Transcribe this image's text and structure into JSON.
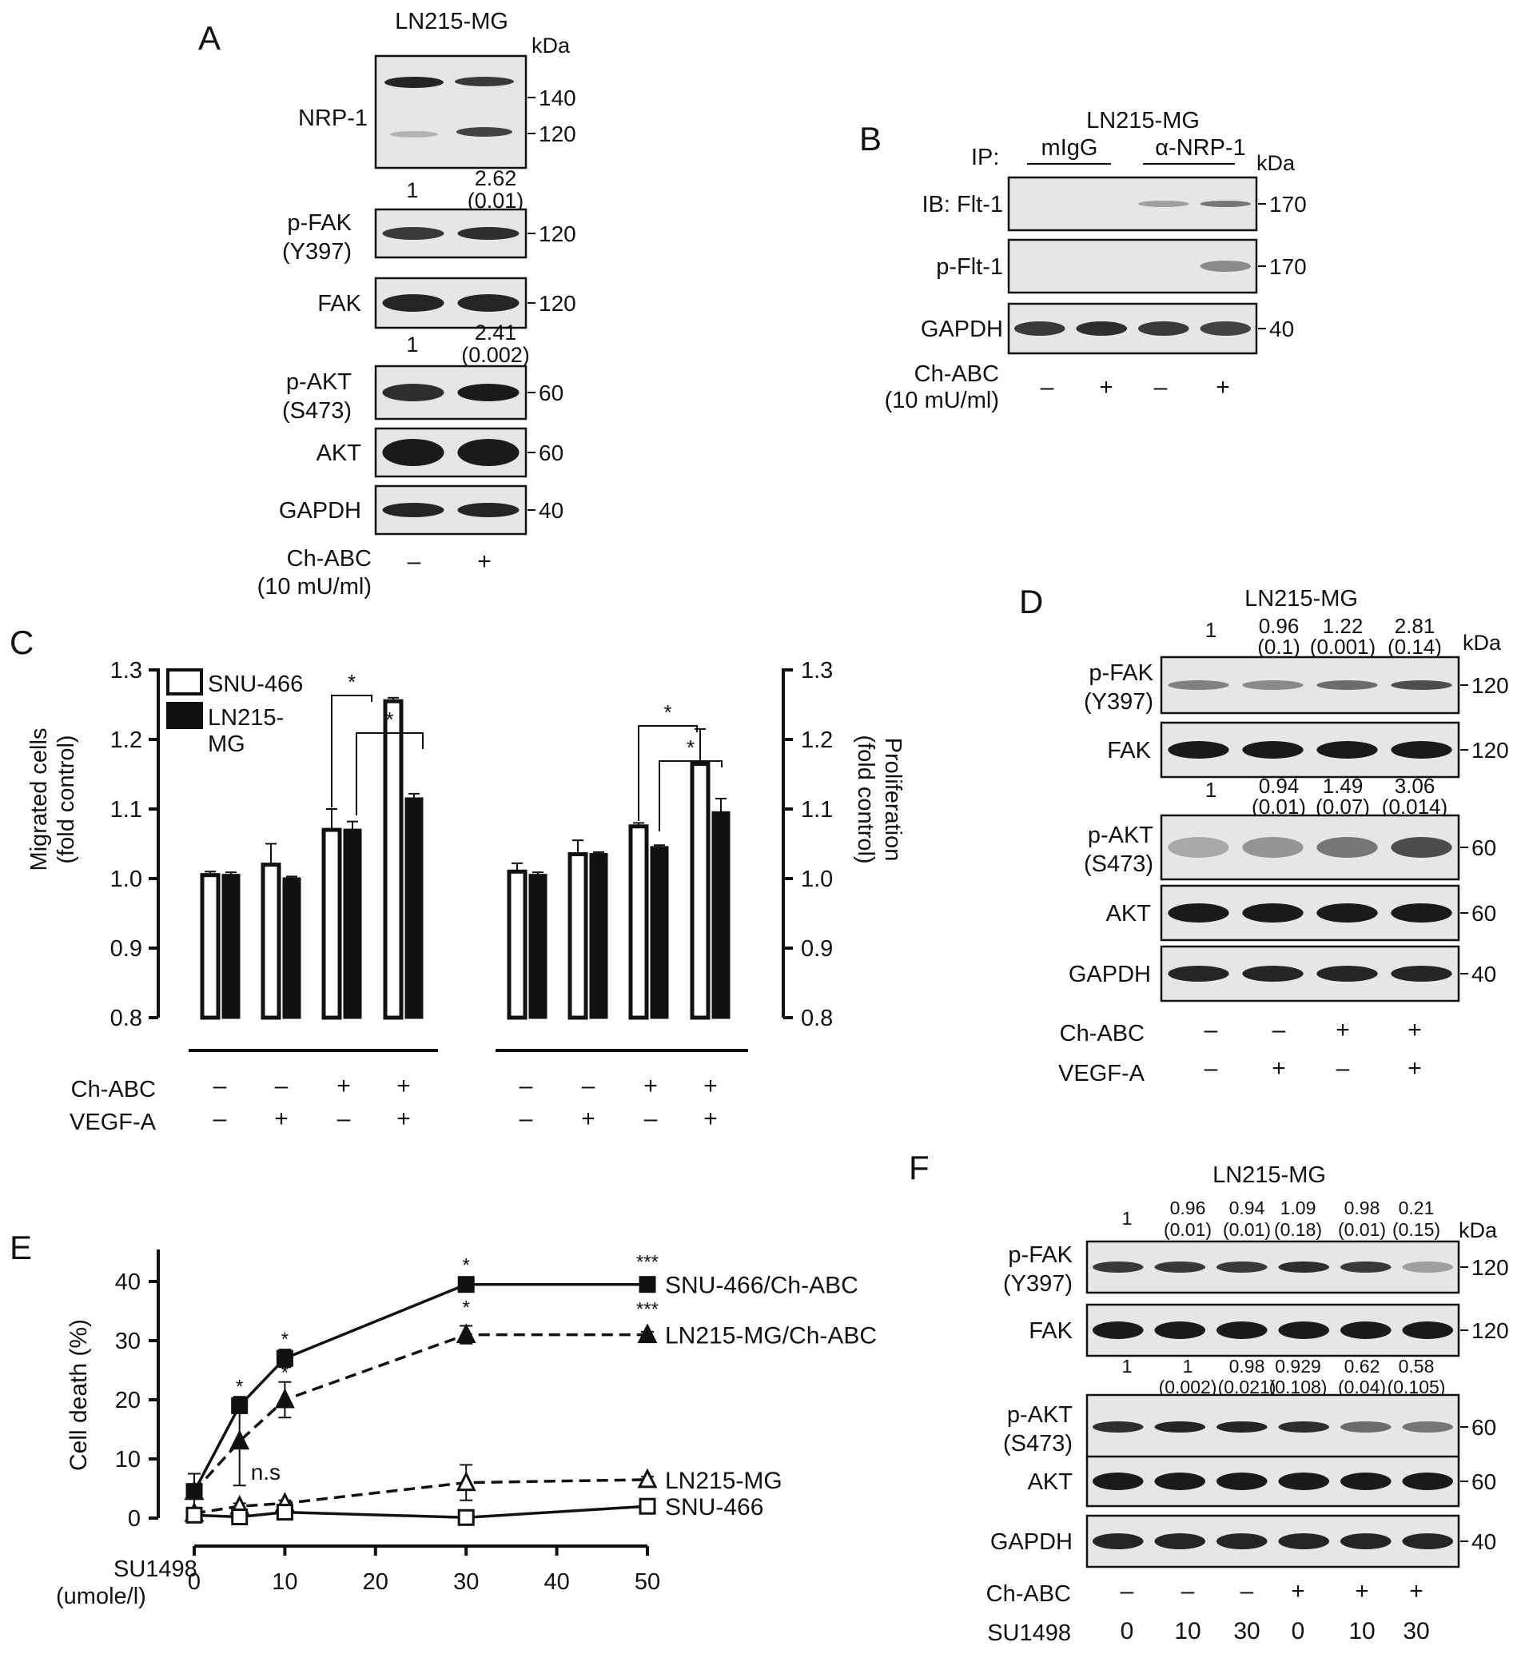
{
  "panels": {
    "A": {
      "letter": "A",
      "cell_line": "LN215-MG",
      "kda": "kDa",
      "rows": [
        {
          "label_lines": [
            "NRP-1"
          ],
          "markers": [
            "140",
            "120"
          ]
        },
        {
          "label_lines": [
            "p-FAK",
            "(Y397)"
          ],
          "markers": [
            "120"
          ],
          "quant_above": [
            "1",
            "2.62",
            "(0.01)"
          ]
        },
        {
          "label_lines": [
            "FAK"
          ],
          "markers": [
            "120"
          ]
        },
        {
          "label_lines": [
            "p-AKT",
            "(S473)"
          ],
          "markers": [
            "60"
          ],
          "quant_above": [
            "1",
            "2.41",
            "(0.002)"
          ]
        },
        {
          "label_lines": [
            "AKT"
          ],
          "markers": [
            "60"
          ]
        },
        {
          "label_lines": [
            "GAPDH"
          ],
          "markers": [
            "40"
          ]
        }
      ],
      "treatment_label": [
        "Ch-ABC",
        "(10 mU/ml)"
      ],
      "lanes": [
        "–",
        "+"
      ]
    },
    "B": {
      "letter": "B",
      "cell_line": "LN215-MG",
      "ip_label": "IP:",
      "ip_groups": [
        "mIgG",
        "α-NRP-1"
      ],
      "kda": "kDa",
      "rows": [
        {
          "label": "IB: Flt-1",
          "marker": "170"
        },
        {
          "label": "p-Flt-1",
          "marker": "170"
        },
        {
          "label": "GAPDH",
          "marker": "40"
        }
      ],
      "treatment_label": [
        "Ch-ABC",
        "(10 mU/ml)"
      ],
      "lanes": [
        "–",
        "+",
        "–",
        "+"
      ]
    },
    "C": {
      "letter": "C",
      "legend": [
        "SNU-466",
        "LN215-",
        "MG"
      ],
      "left_ylabel": [
        "Migrated cells",
        "(fold control)"
      ],
      "right_ylabel": [
        "Proliferation",
        "(fold control)"
      ],
      "yticks": [
        "1.3",
        "1.2",
        "1.1",
        "1.0",
        "0.9",
        "0.8"
      ],
      "row_labels": [
        "Ch-ABC",
        "VEGF-A"
      ],
      "ch_abc": [
        "–",
        "–",
        "+",
        "+",
        "–",
        "–",
        "+",
        "+"
      ],
      "vegf_a": [
        "–",
        "+",
        "–",
        "+",
        "–",
        "+",
        "–",
        "+"
      ],
      "sig_mark": "*"
    },
    "D": {
      "letter": "D",
      "cell_line": "LN215-MG",
      "kda": "kDa",
      "quant_top": [
        [
          "1",
          ""
        ],
        [
          "0.96",
          "(0.1)"
        ],
        [
          "1.22",
          "(0.001)"
        ],
        [
          "2.81",
          "(0.14)"
        ]
      ],
      "quant_mid": [
        [
          "1",
          ""
        ],
        [
          "0.94",
          "(0.01)"
        ],
        [
          "1.49",
          "(0.07)"
        ],
        [
          "3.06",
          "(0.014)"
        ]
      ],
      "rows": [
        {
          "label_lines": [
            "p-FAK",
            "(Y397)"
          ],
          "marker": "120"
        },
        {
          "label_lines": [
            "FAK"
          ],
          "marker": "120"
        },
        {
          "label_lines": [
            "p-AKT",
            "(S473)"
          ],
          "marker": "60"
        },
        {
          "label_lines": [
            "AKT"
          ],
          "marker": "60"
        },
        {
          "label_lines": [
            "GAPDH"
          ],
          "marker": "40"
        }
      ],
      "row_labels": [
        "Ch-ABC",
        "VEGF-A"
      ],
      "ch_abc": [
        "–",
        "–",
        "+",
        "+"
      ],
      "vegf_a": [
        "–",
        "+",
        "–",
        "+"
      ]
    },
    "E": {
      "letter": "E",
      "ylabel": "Cell death (%)",
      "xlabel": [
        "SU1498",
        "(umole/l)"
      ],
      "yticks": [
        "40",
        "30",
        "20",
        "10",
        "0"
      ],
      "xticks": [
        "0",
        "10",
        "20",
        "30",
        "40",
        "50"
      ],
      "ns_label": "n.s",
      "series_labels": [
        "SNU-466/Ch-ABC",
        "LN215-MG/Ch-ABC",
        "LN215-MG",
        "SNU-466"
      ],
      "sig": {
        "one": "*",
        "three": "***"
      }
    },
    "F": {
      "letter": "F",
      "cell_line": "LN215-MG",
      "kda": "kDa",
      "quant_top": [
        [
          "1",
          ""
        ],
        [
          "0.96",
          "(0.01)"
        ],
        [
          "0.94",
          "(0.01)"
        ],
        [
          "1.09",
          "(0.18)"
        ],
        [
          "0.98",
          "(0.01)"
        ],
        [
          "0.21",
          "(0.15)"
        ]
      ],
      "quant_mid": [
        [
          "1",
          ""
        ],
        [
          "1",
          "(0.002)"
        ],
        [
          "0.98",
          "(0.021)"
        ],
        [
          "0.929",
          "(0.108)"
        ],
        [
          "0.62",
          "(0.04)"
        ],
        [
          "0.58",
          "(0.105)"
        ]
      ],
      "rows": [
        {
          "label_lines": [
            "p-FAK",
            "(Y397)"
          ],
          "marker": "120"
        },
        {
          "label_lines": [
            "FAK"
          ],
          "marker": "120"
        },
        {
          "label_lines": [
            "p-AKT",
            "(S473)"
          ],
          "marker": "60"
        },
        {
          "label_lines": [
            "AKT"
          ],
          "marker": "60"
        },
        {
          "label_lines": [
            "GAPDH"
          ],
          "marker": "40"
        }
      ],
      "row_labels": [
        "Ch-ABC",
        "SU1498"
      ],
      "ch_abc": [
        "–",
        "–",
        "–",
        "+",
        "+",
        "+"
      ],
      "su1498": [
        "0",
        "10",
        "30",
        "0",
        "10",
        "30"
      ]
    }
  },
  "chart_data": [
    {
      "type": "bar",
      "panel": "C",
      "categories": [
        "–/–",
        "–/+",
        "+/–",
        "+/+"
      ],
      "ylim": [
        0.8,
        1.3
      ],
      "series": [
        {
          "name": "SNU-466",
          "group": "Migrated cells",
          "values": [
            1.005,
            1.02,
            1.07,
            1.255
          ],
          "errors": [
            0.005,
            0.03,
            0.03,
            0.005
          ]
        },
        {
          "name": "LN215-MG",
          "group": "Migrated cells",
          "values": [
            1.005,
            1.0,
            1.07,
            1.115
          ],
          "errors": [
            0.004,
            0.003,
            0.012,
            0.007
          ]
        },
        {
          "name": "SNU-466",
          "group": "Proliferation",
          "values": [
            1.01,
            1.035,
            1.075,
            1.165
          ],
          "errors": [
            0.012,
            0.02,
            0.005,
            0.05
          ]
        },
        {
          "name": "LN215-MG",
          "group": "Proliferation",
          "values": [
            1.005,
            1.035,
            1.045,
            1.095
          ],
          "errors": [
            0.004,
            0.003,
            0.003,
            0.02
          ]
        }
      ]
    },
    {
      "type": "line",
      "panel": "E",
      "x": [
        0,
        5,
        10,
        30,
        50
      ],
      "xlim": [
        0,
        50
      ],
      "ylim": [
        0,
        45
      ],
      "series": [
        {
          "name": "SNU-466/Ch-ABC",
          "values": [
            4.5,
            19,
            27,
            39.5,
            39.5
          ],
          "errors": [
            1,
            1,
            1.5,
            1,
            0.5
          ],
          "marker": "square-filled",
          "dash": false
        },
        {
          "name": "LN215-MG/Ch-ABC",
          "values": [
            4.5,
            13,
            20,
            31,
            31
          ],
          "errors": [
            3,
            7.5,
            3,
            1.5,
            0.5
          ],
          "marker": "triangle-filled",
          "dash": true
        },
        {
          "name": "LN215-MG",
          "values": [
            0.8,
            2,
            2.5,
            6,
            6.5
          ],
          "errors": [
            0.5,
            0.5,
            0.5,
            3,
            0.5
          ],
          "marker": "triangle-open",
          "dash": true
        },
        {
          "name": "SNU-466",
          "values": [
            0.5,
            0.2,
            1,
            0.1,
            2
          ],
          "errors": [
            0.3,
            0.3,
            0.5,
            0.3,
            0.5
          ],
          "marker": "square-open",
          "dash": false
        }
      ]
    }
  ]
}
